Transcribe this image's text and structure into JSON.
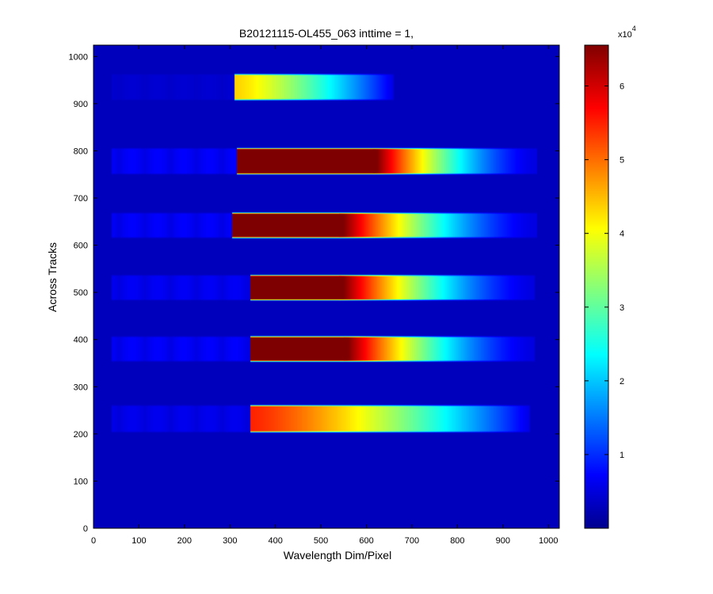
{
  "chart_data": {
    "type": "heatmap",
    "title": "B20121115-OL455_063 inttime = 1,",
    "xlabel": "Wavelength Dim/Pixel",
    "ylabel": "Across Tracks",
    "xlim": [
      0,
      1024
    ],
    "ylim": [
      0,
      1024
    ],
    "x_ticks": [
      "0",
      "100",
      "200",
      "300",
      "400",
      "500",
      "600",
      "700",
      "800",
      "900",
      "1000"
    ],
    "y_ticks": [
      "0",
      "100",
      "200",
      "300",
      "400",
      "500",
      "600",
      "700",
      "800",
      "900",
      "1000"
    ],
    "colorbar": {
      "colormap": "jet",
      "min": 0,
      "max": 65535,
      "ticks": [
        "1",
        "2",
        "3",
        "4",
        "5",
        "6"
      ],
      "exponent_label": "x10",
      "exponent": "4"
    },
    "background_value": 0,
    "tracks": [
      {
        "y_center": 935,
        "height": 58,
        "x_start": 310,
        "x_end": 660,
        "faint_start": 40,
        "faint_level": 1500,
        "peak": 40000,
        "saturated_until": 0
      },
      {
        "y_center": 778,
        "height": 58,
        "x_start": 316,
        "x_end": 975,
        "faint_start": 40,
        "faint_level": 4500,
        "peak": 65535,
        "saturated_until": 615
      },
      {
        "y_center": 642,
        "height": 56,
        "x_start": 305,
        "x_end": 975,
        "faint_start": 40,
        "faint_level": 4500,
        "peak": 65535,
        "saturated_until": 540
      },
      {
        "y_center": 510,
        "height": 56,
        "x_start": 345,
        "x_end": 970,
        "faint_start": 40,
        "faint_level": 4000,
        "peak": 65535,
        "saturated_until": 540
      },
      {
        "y_center": 380,
        "height": 56,
        "x_start": 345,
        "x_end": 970,
        "faint_start": 40,
        "faint_level": 4500,
        "peak": 65535,
        "saturated_until": 550
      },
      {
        "y_center": 232,
        "height": 60,
        "x_start": 345,
        "x_end": 960,
        "faint_start": 40,
        "faint_level": 3500,
        "peak": 52000,
        "saturated_until": 0
      }
    ]
  }
}
